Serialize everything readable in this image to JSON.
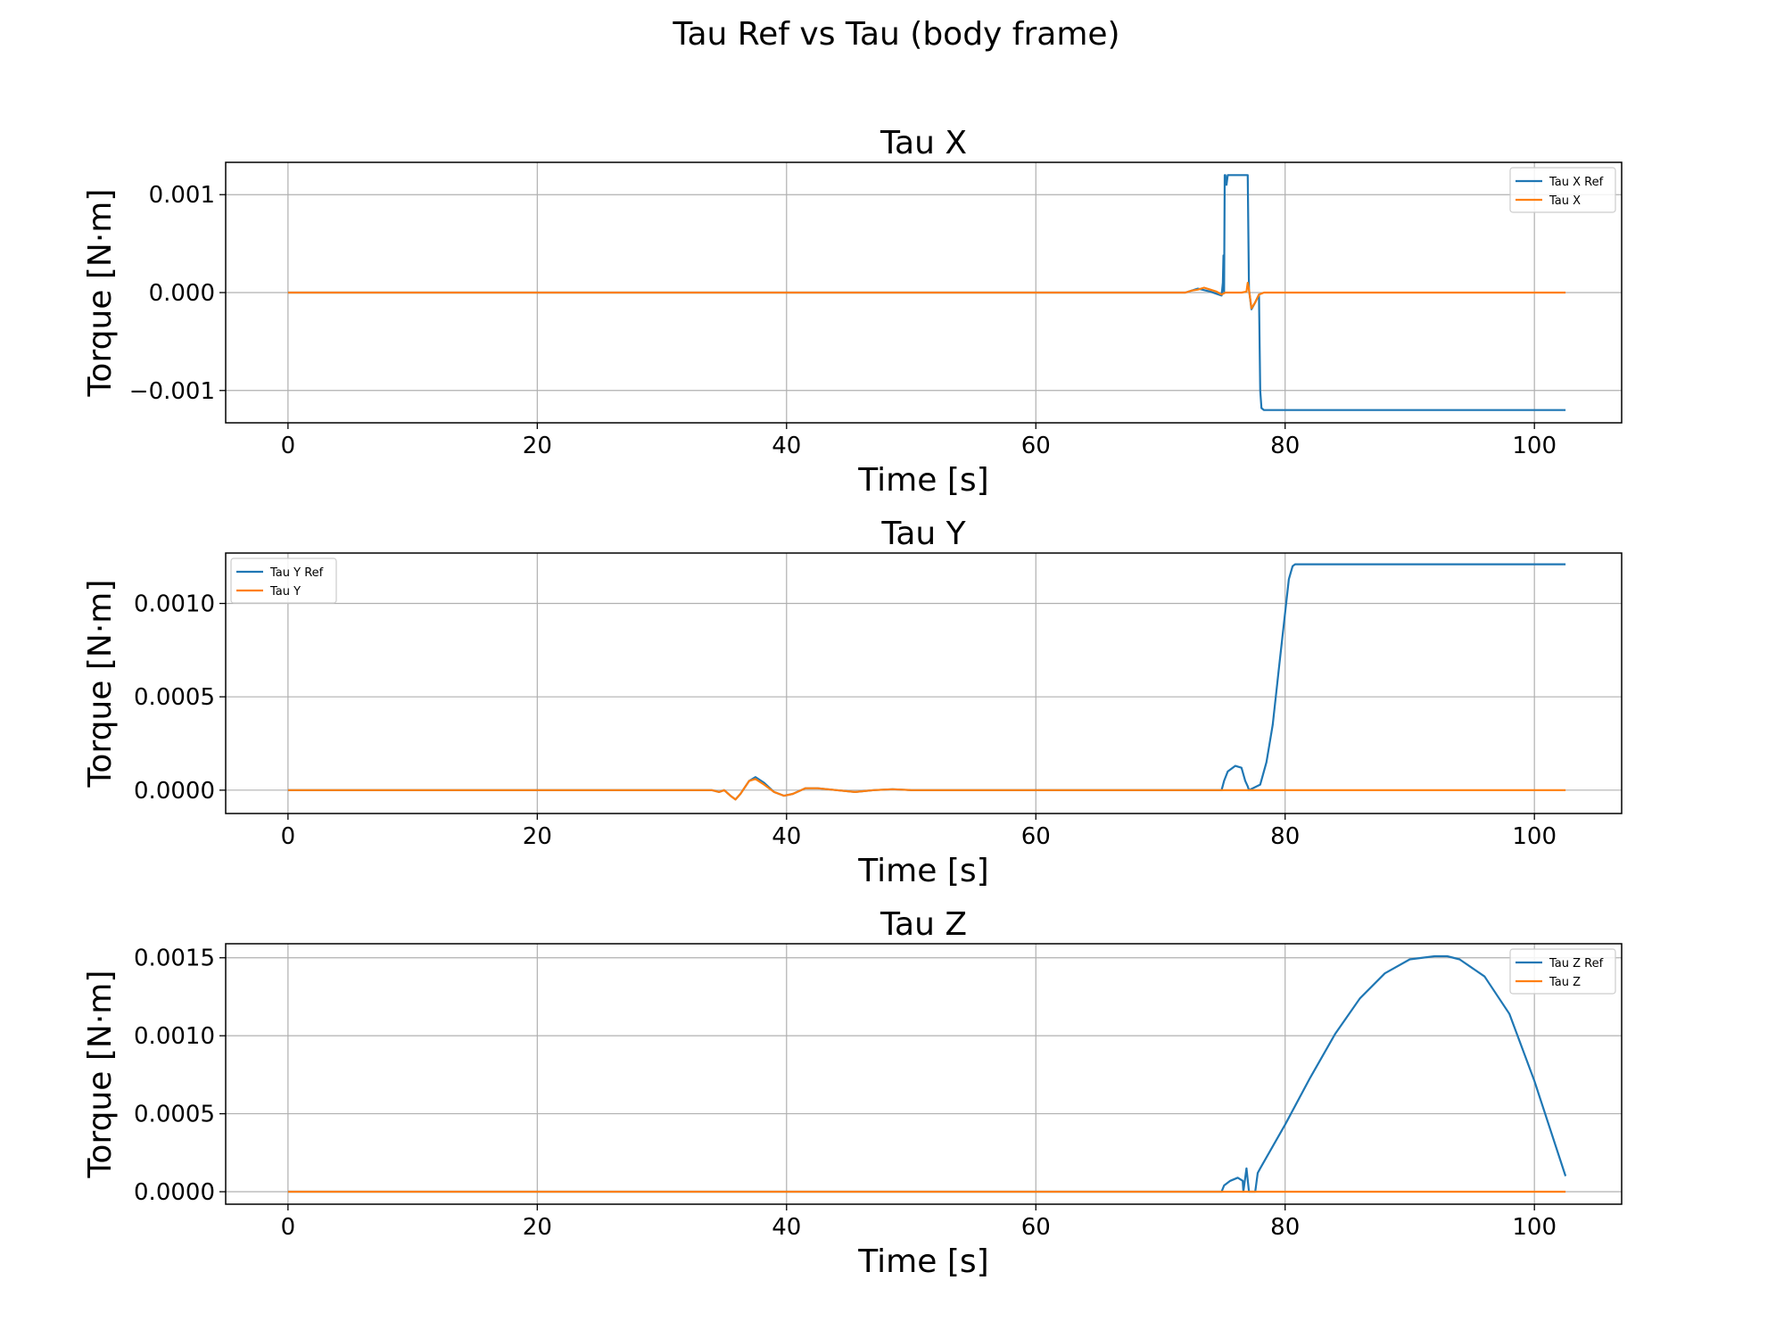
{
  "figure": {
    "title": "Tau Ref vs Tau (body frame)"
  },
  "colors": {
    "ref": "#1f77b4",
    "actual": "#ff7f0e",
    "grid": "#b0b0b0"
  },
  "chart_data": [
    {
      "type": "line",
      "title": "Tau X",
      "xlabel": "Time [s]",
      "ylabel": "Torque [N·m]",
      "xlim": [
        -5,
        107
      ],
      "ylim": [
        -0.00133,
        0.00133
      ],
      "xticks": [
        0,
        20,
        40,
        60,
        80,
        100
      ],
      "xtick_labels": [
        "0",
        "20",
        "40",
        "60",
        "80",
        "100"
      ],
      "yticks": [
        -0.001,
        0,
        0.001
      ],
      "ytick_labels": [
        "−0.001",
        "0.000",
        "0.001"
      ],
      "grid": true,
      "legend_position": "top-right",
      "series": [
        {
          "name": "Tau X Ref",
          "color": "#1f77b4",
          "x": [
            0,
            72,
            73,
            74,
            74.9,
            75.0,
            75.05,
            75.1,
            75.15,
            75.2,
            75.3,
            75.4,
            75.6,
            77.0,
            77.1,
            77.3,
            77.6,
            77.9,
            78.0,
            78.1,
            78.3,
            102.5
          ],
          "y": [
            0,
            0,
            4e-05,
            1e-05,
            -3e-05,
            0.0001,
            0.00038,
            0.0,
            0.0012,
            0.0012,
            0.0011,
            0.0012,
            0.0012,
            0.0012,
            3e-05,
            -0.00017,
            -0.0001,
            -2e-05,
            -0.001,
            -0.00118,
            -0.0012,
            -0.0012
          ]
        },
        {
          "name": "Tau X",
          "color": "#ff7f0e",
          "x": [
            0,
            72,
            72.5,
            73,
            73.5,
            74,
            74.5,
            74.9,
            75.2,
            76,
            76.5,
            76.9,
            77.0,
            77.1,
            77.3,
            77.6,
            77.9,
            78.3,
            102.5
          ],
          "y": [
            0,
            0,
            2e-05,
            3e-05,
            5e-05,
            3e-05,
            1e-05,
            -2e-05,
            0,
            0,
            0,
            1e-05,
            0.0001,
            3e-05,
            -0.00016,
            -0.0001,
            -2e-05,
            0,
            0
          ]
        }
      ]
    },
    {
      "type": "line",
      "title": "Tau Y",
      "xlabel": "Time [s]",
      "ylabel": "Torque [N·m]",
      "xlim": [
        -5,
        107
      ],
      "ylim": [
        -0.000125,
        0.00127
      ],
      "xticks": [
        0,
        20,
        40,
        60,
        80,
        100
      ],
      "xtick_labels": [
        "0",
        "20",
        "40",
        "60",
        "80",
        "100"
      ],
      "yticks": [
        0,
        0.0005,
        0.001
      ],
      "ytick_labels": [
        "0.0000",
        "0.0005",
        "0.0010"
      ],
      "grid": true,
      "legend_position": "top-left",
      "series": [
        {
          "name": "Tau Y Ref",
          "color": "#1f77b4",
          "x": [
            0,
            34,
            34.6,
            35,
            35.5,
            35.9,
            36.3,
            37.0,
            37.5,
            38.2,
            39,
            39.8,
            40.5,
            41.5,
            42.5,
            44,
            45.5,
            47,
            48.5,
            50,
            52,
            74.9,
            75.1,
            75.4,
            76,
            76.5,
            76.8,
            77,
            77.1,
            78,
            78.5,
            79,
            79.5,
            80,
            80.3,
            80.6,
            80.8,
            102.5
          ],
          "y": [
            0,
            0,
            -1e-05,
            0.0,
            -3e-05,
            -5e-05,
            -2e-05,
            5e-05,
            7e-05,
            4e-05,
            -1e-05,
            -3e-05,
            -2e-05,
            1e-05,
            1e-05,
            0.0,
            -1e-05,
            0.0,
            5e-06,
            0.0,
            0,
            0,
            5e-05,
            0.0001,
            0.00013,
            0.00012,
            5e-05,
            2e-05,
            0.0,
            3e-05,
            0.00015,
            0.00035,
            0.00065,
            0.00095,
            0.00113,
            0.0012,
            0.00121,
            0.00121
          ]
        },
        {
          "name": "Tau Y",
          "color": "#ff7f0e",
          "x": [
            0,
            34,
            34.6,
            35,
            35.5,
            35.9,
            36.3,
            37.0,
            37.5,
            38.2,
            39,
            39.8,
            40.5,
            41.5,
            42.5,
            44,
            45.5,
            47,
            48.5,
            50,
            52,
            102.5
          ],
          "y": [
            0,
            0,
            -1e-05,
            0.0,
            -3e-05,
            -5e-05,
            -2e-05,
            5e-05,
            6e-05,
            3e-05,
            -1e-05,
            -3e-05,
            -2e-05,
            1e-05,
            1e-05,
            0.0,
            -1e-05,
            0.0,
            5e-06,
            0.0,
            0,
            0
          ]
        }
      ]
    },
    {
      "type": "line",
      "title": "Tau Z",
      "xlabel": "Time [s]",
      "ylabel": "Torque [N·m]",
      "xlim": [
        -5,
        107
      ],
      "ylim": [
        -8e-05,
        0.00159
      ],
      "xticks": [
        0,
        20,
        40,
        60,
        80,
        100
      ],
      "xtick_labels": [
        "0",
        "20",
        "40",
        "60",
        "80",
        "100"
      ],
      "yticks": [
        0,
        0.0005,
        0.001,
        0.0015
      ],
      "ytick_labels": [
        "0.0000",
        "0.0005",
        "0.0010",
        "0.0015"
      ],
      "grid": true,
      "legend_position": "top-right",
      "series": [
        {
          "name": "Tau Z Ref",
          "color": "#1f77b4",
          "x": [
            0,
            74.9,
            75.1,
            75.6,
            76.2,
            76.6,
            76.65,
            76.9,
            77.1,
            77.3,
            77.6,
            77.8,
            78.0,
            80,
            82,
            84,
            86,
            88,
            90,
            92,
            93,
            94,
            96,
            98,
            100,
            102.5
          ],
          "y": [
            0,
            0,
            4e-05,
            7e-05,
            9e-05,
            7e-05,
            0.0,
            0.00015,
            0.0,
            0.0,
            0.0,
            0.00012,
            0.00015,
            0.00043,
            0.00073,
            0.00101,
            0.00124,
            0.0014,
            0.00149,
            0.00151,
            0.00151,
            0.00149,
            0.00138,
            0.00114,
            0.00071,
            0.0001
          ]
        },
        {
          "name": "Tau Z",
          "color": "#ff7f0e",
          "x": [
            0,
            102.5
          ],
          "y": [
            0,
            0
          ]
        }
      ]
    }
  ]
}
